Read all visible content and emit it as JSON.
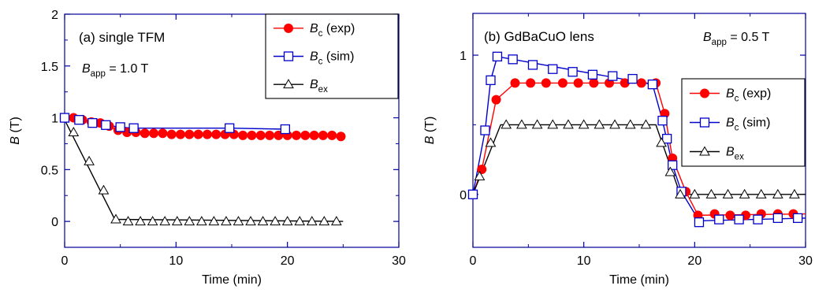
{
  "colors": {
    "exp": "#ff0000",
    "sim": "#0000cc",
    "ex": "#000000",
    "frame": "#000099"
  },
  "chart_data": [
    {
      "type": "line",
      "panel_label": "(a) single TFM",
      "annotation": {
        "symbol": "B",
        "sub": "app",
        "rest": " = 1.0 T"
      },
      "xlabel": "Time (min)",
      "ylabel": {
        "symbol": "B",
        "rest": " (T)"
      },
      "xlim": [
        0,
        30
      ],
      "ylim": [
        -0.25,
        2
      ],
      "x_ticks": [
        0,
        10,
        20,
        30
      ],
      "y_ticks": [
        0,
        0.5,
        1,
        1.5,
        2
      ],
      "x_tick_labels": [
        "0",
        "10",
        "20",
        "30"
      ],
      "y_tick_labels": [
        "0",
        "0.5",
        "1",
        "1.5",
        "2"
      ],
      "legend_position": "top-right",
      "series": [
        {
          "key": "exp",
          "legend": {
            "symbol": "B",
            "sub": "c",
            "rest": " (exp)"
          },
          "marker": "filled-circle",
          "x": [
            0,
            0.8,
            1.6,
            2.4,
            3.2,
            4.0,
            4.8,
            5.6,
            6.4,
            7.2,
            8.0,
            8.8,
            9.6,
            10.4,
            11.2,
            12.0,
            12.8,
            13.6,
            14.4,
            15.2,
            16.0,
            16.8,
            17.6,
            18.4,
            19.2,
            20.0,
            20.8,
            21.6,
            22.4,
            23.2,
            24.0,
            24.8
          ],
          "y": [
            1.0,
            1.0,
            0.98,
            0.96,
            0.95,
            0.92,
            0.88,
            0.86,
            0.86,
            0.85,
            0.85,
            0.85,
            0.84,
            0.84,
            0.84,
            0.84,
            0.84,
            0.84,
            0.84,
            0.84,
            0.83,
            0.83,
            0.83,
            0.83,
            0.83,
            0.83,
            0.83,
            0.83,
            0.83,
            0.83,
            0.83,
            0.82
          ]
        },
        {
          "key": "sim",
          "legend": {
            "symbol": "B",
            "sub": "c",
            "rest": " (sim)"
          },
          "marker": "open-square",
          "x": [
            0,
            1.3,
            2.5,
            3.7,
            5.0,
            6.2,
            14.8,
            19.8
          ],
          "y": [
            1.0,
            0.98,
            0.95,
            0.93,
            0.91,
            0.9,
            0.9,
            0.89
          ]
        },
        {
          "key": "ex",
          "legend": {
            "symbol": "B",
            "sub": "ex",
            "rest": ""
          },
          "marker": "open-triangle",
          "x": [
            0.8,
            2.2,
            3.5,
            4.6,
            5.7,
            6.8,
            7.9,
            9.0,
            10.1,
            11.2,
            12.3,
            13.4,
            14.5,
            15.6,
            16.7,
            17.8,
            18.9,
            20.0,
            21.1,
            22.2,
            23.3,
            24.4
          ],
          "y": [
            0.86,
            0.58,
            0.3,
            0.02,
            0,
            0,
            0,
            0,
            0,
            0,
            0,
            0,
            0,
            0,
            0,
            0,
            0,
            0,
            0,
            0,
            0,
            0
          ],
          "line_x": [
            0,
            4.5,
            25
          ],
          "line_y": [
            0.98,
            0.02,
            0
          ]
        }
      ]
    },
    {
      "type": "line",
      "panel_label": "(b) GdBaCuO lens",
      "annotation": {
        "symbol": "B",
        "sub": "app",
        "rest": " = 0.5 T"
      },
      "xlabel": "Time (min)",
      "ylabel": {
        "symbol": "B",
        "rest": " (T)"
      },
      "xlim": [
        0,
        30
      ],
      "ylim": [
        -0.38,
        1.3
      ],
      "x_ticks": [
        0,
        10,
        20,
        30
      ],
      "y_ticks": [
        0,
        1
      ],
      "x_tick_labels": [
        "0",
        "10",
        "20",
        "30"
      ],
      "y_tick_labels": [
        "0",
        "1"
      ],
      "legend_position": "center-right",
      "series": [
        {
          "key": "exp",
          "legend": {
            "symbol": "B",
            "sub": "c",
            "rest": " (exp)"
          },
          "marker": "filled-circle",
          "x": [
            0.8,
            2.1,
            3.8,
            5.2,
            6.6,
            8.1,
            9.5,
            10.9,
            12.3,
            13.7,
            15.2,
            16.5,
            17.3,
            18.0,
            19.2,
            20.3,
            21.8,
            23.2,
            24.6,
            26.0,
            27.5,
            28.9
          ],
          "y": [
            0.18,
            0.68,
            0.8,
            0.8,
            0.8,
            0.8,
            0.8,
            0.8,
            0.8,
            0.8,
            0.8,
            0.8,
            0.58,
            0.26,
            0.02,
            -0.15,
            -0.14,
            -0.15,
            -0.15,
            -0.14,
            -0.14,
            -0.14
          ],
          "line_x": [
            0,
            0.8,
            2.1,
            3.8,
            16.5,
            17.3,
            18.0,
            19.2,
            20.3,
            30
          ],
          "line_y": [
            0,
            0.18,
            0.68,
            0.8,
            0.8,
            0.58,
            0.26,
            0.02,
            -0.15,
            -0.14
          ]
        },
        {
          "key": "sim",
          "legend": {
            "symbol": "B",
            "sub": "c",
            "rest": " (sim)"
          },
          "marker": "open-square",
          "x": [
            0,
            1.1,
            1.6,
            2.2,
            3.6,
            5.4,
            7.2,
            9.0,
            10.8,
            12.6,
            14.4,
            16.2,
            17.1,
            17.5,
            18.0,
            18.8,
            20.4,
            22.2,
            24.0,
            25.7,
            27.5,
            29.3
          ],
          "y": [
            0,
            0.46,
            0.82,
            0.99,
            0.97,
            0.93,
            0.9,
            0.88,
            0.86,
            0.85,
            0.83,
            0.79,
            0.53,
            0.4,
            0.21,
            0.02,
            -0.2,
            -0.18,
            -0.18,
            -0.18,
            -0.17,
            -0.17
          ],
          "line_x": [
            0,
            1.1,
            1.6,
            2.2,
            3.6,
            16.2,
            17.1,
            18.0,
            18.8,
            20.4,
            30
          ],
          "line_y": [
            0,
            0.46,
            0.82,
            0.99,
            0.97,
            0.79,
            0.53,
            0.21,
            0.02,
            -0.19,
            -0.17
          ]
        },
        {
          "key": "ex",
          "legend": {
            "symbol": "B",
            "sub": "ex",
            "rest": ""
          },
          "marker": "open-triangle",
          "x": [
            0.6,
            1.6,
            3.0,
            4.4,
            5.8,
            7.2,
            8.6,
            10.0,
            11.4,
            12.8,
            14.2,
            15.6,
            17.0,
            17.8,
            18.7,
            20.0,
            21.5,
            23.0,
            24.5,
            26.0,
            27.5,
            29.0
          ],
          "y": [
            0.13,
            0.37,
            0.5,
            0.5,
            0.5,
            0.5,
            0.5,
            0.5,
            0.5,
            0.5,
            0.5,
            0.5,
            0.37,
            0.16,
            0,
            0,
            0,
            0,
            0,
            0,
            0,
            0
          ],
          "line_x": [
            0,
            2.5,
            16.5,
            18.7,
            30
          ],
          "line_y": [
            0,
            0.5,
            0.5,
            0,
            0
          ]
        }
      ]
    }
  ]
}
